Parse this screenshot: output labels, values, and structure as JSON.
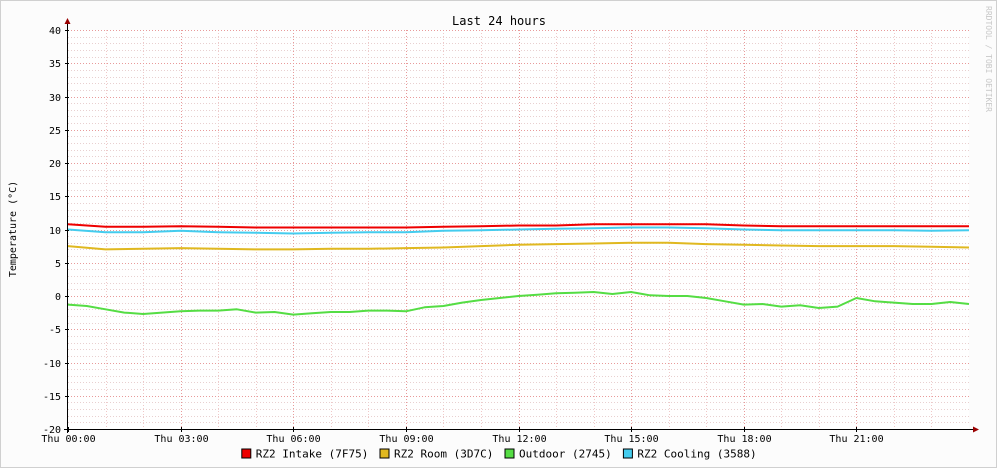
{
  "chart_data": {
    "type": "line",
    "title": "Last 24 hours",
    "ylabel": "Temperature (°C)",
    "watermark": "RRDTOOL / TOBI OETIKER",
    "ylim": [
      -20,
      40
    ],
    "yticks": [
      40,
      35,
      30,
      25,
      20,
      15,
      10,
      5,
      0,
      -5,
      -10,
      -15,
      -20
    ],
    "xlim": [
      0,
      24
    ],
    "xticks": [
      {
        "hour": 0,
        "label": "Thu 00:00"
      },
      {
        "hour": 3,
        "label": "Thu 03:00"
      },
      {
        "hour": 6,
        "label": "Thu 06:00"
      },
      {
        "hour": 9,
        "label": "Thu 09:00"
      },
      {
        "hour": 12,
        "label": "Thu 12:00"
      },
      {
        "hour": 15,
        "label": "Thu 15:00"
      },
      {
        "hour": 18,
        "label": "Thu 18:00"
      },
      {
        "hour": 21,
        "label": "Thu 21:00"
      }
    ],
    "grid": true,
    "legend_position": "bottom",
    "series": [
      {
        "name": "RZ2 Intake (7F75)",
        "color": "#ee0000",
        "x": [
          0,
          1,
          2,
          3,
          4,
          5,
          6,
          7,
          8,
          9,
          10,
          11,
          12,
          13,
          14,
          15,
          16,
          17,
          18,
          19,
          20,
          21,
          22,
          23,
          24
        ],
        "y": [
          10.8,
          10.4,
          10.4,
          10.5,
          10.4,
          10.3,
          10.3,
          10.3,
          10.3,
          10.3,
          10.4,
          10.5,
          10.6,
          10.6,
          10.8,
          10.8,
          10.8,
          10.8,
          10.6,
          10.5,
          10.5,
          10.5,
          10.5,
          10.5,
          10.5
        ]
      },
      {
        "name": "RZ2 Room (3D7C)",
        "color": "#e0b820",
        "x": [
          0,
          1,
          2,
          3,
          4,
          5,
          6,
          7,
          8,
          9,
          10,
          11,
          12,
          13,
          14,
          15,
          16,
          17,
          18,
          19,
          20,
          21,
          22,
          23,
          24
        ],
        "y": [
          7.5,
          7.0,
          7.1,
          7.2,
          7.1,
          7.0,
          7.0,
          7.1,
          7.1,
          7.2,
          7.3,
          7.5,
          7.7,
          7.8,
          7.9,
          8.0,
          8.0,
          7.8,
          7.7,
          7.6,
          7.5,
          7.5,
          7.5,
          7.4,
          7.3
        ]
      },
      {
        "name": "Outdoor (2745)",
        "color": "#55dd44",
        "x": [
          0,
          0.5,
          1,
          1.5,
          2,
          2.5,
          3,
          3.5,
          4,
          4.5,
          5,
          5.5,
          6,
          6.5,
          7,
          7.5,
          8,
          8.5,
          9,
          9.5,
          10,
          10.5,
          11,
          11.5,
          12,
          12.5,
          13,
          13.5,
          14,
          14.5,
          15,
          15.5,
          16,
          16.5,
          17,
          17.5,
          18,
          18.5,
          19,
          19.5,
          20,
          20.5,
          21,
          21.5,
          22,
          22.5,
          23,
          23.5,
          24
        ],
        "y": [
          -1.3,
          -1.5,
          -2.0,
          -2.5,
          -2.7,
          -2.5,
          -2.3,
          -2.2,
          -2.2,
          -2.0,
          -2.5,
          -2.4,
          -2.8,
          -2.6,
          -2.4,
          -2.4,
          -2.2,
          -2.2,
          -2.3,
          -1.7,
          -1.5,
          -1.0,
          -0.6,
          -0.3,
          0.0,
          0.2,
          0.4,
          0.5,
          0.6,
          0.3,
          0.6,
          0.1,
          0.0,
          0.0,
          -0.3,
          -0.8,
          -1.3,
          -1.2,
          -1.6,
          -1.4,
          -1.8,
          -1.6,
          -0.3,
          -0.8,
          -1.0,
          -1.2,
          -1.2,
          -0.9,
          -1.2
        ]
      },
      {
        "name": "RZ2 Cooling (3588)",
        "color": "#44ccee",
        "x": [
          0,
          1,
          2,
          3,
          4,
          5,
          6,
          7,
          8,
          9,
          10,
          11,
          12,
          13,
          14,
          15,
          16,
          17,
          18,
          19,
          20,
          21,
          22,
          23,
          24
        ],
        "y": [
          10.0,
          9.6,
          9.6,
          9.8,
          9.6,
          9.5,
          9.4,
          9.5,
          9.6,
          9.6,
          9.8,
          9.9,
          10.0,
          10.1,
          10.2,
          10.3,
          10.3,
          10.2,
          10.0,
          9.9,
          9.9,
          9.9,
          9.9,
          9.8,
          9.9
        ]
      }
    ]
  }
}
